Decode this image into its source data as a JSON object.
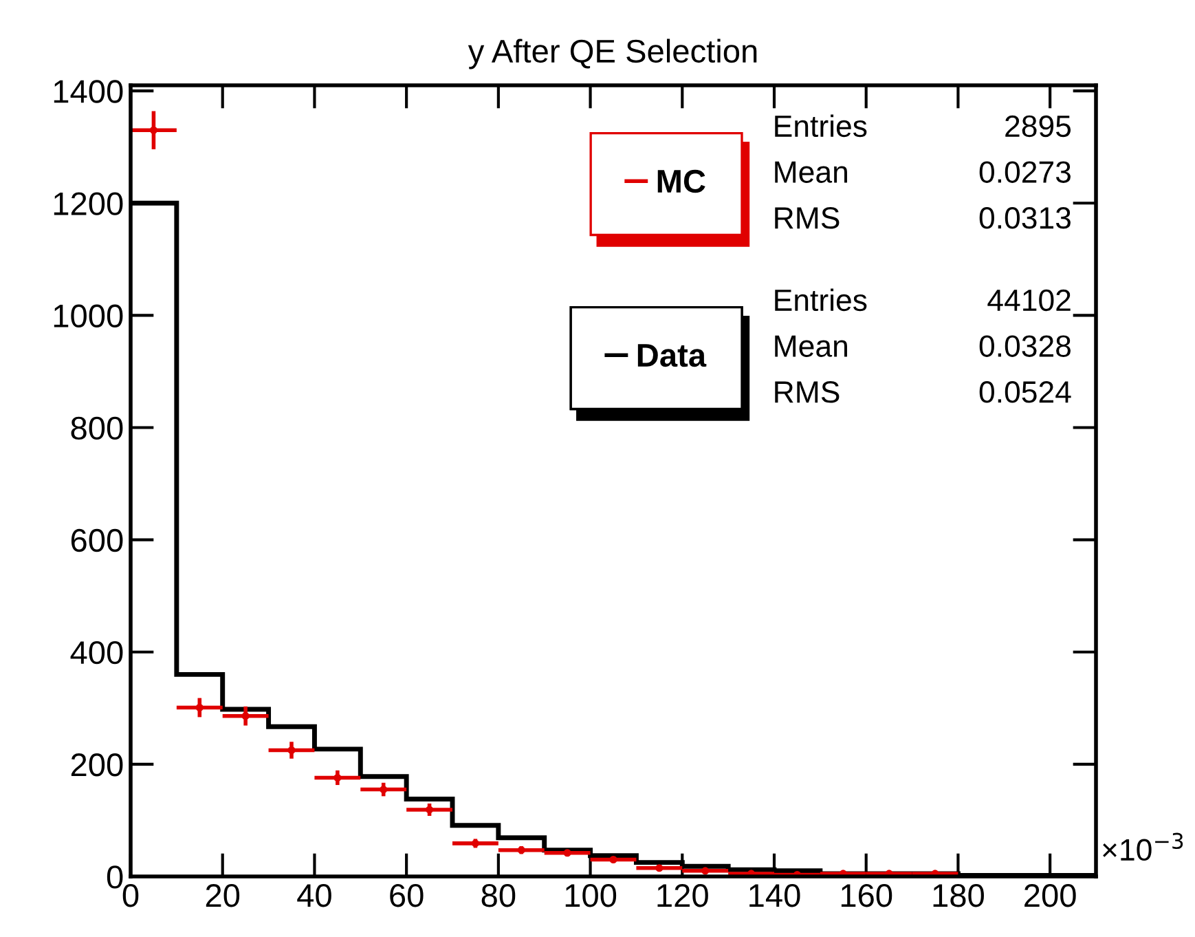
{
  "chart_data": {
    "type": "histogram",
    "title": "y After QE Selection",
    "bins": [
      0,
      10,
      20,
      30,
      40,
      50,
      60,
      70,
      80,
      90,
      100,
      110,
      120,
      130,
      140,
      150,
      160,
      170,
      180,
      190,
      200,
      210
    ],
    "series": [
      {
        "name": "Data",
        "color": "#000000",
        "values": [
          1200,
          360,
          298,
          267,
          227,
          178,
          138,
          91,
          69,
          47,
          37,
          25,
          18,
          12,
          10,
          5,
          5,
          5,
          2,
          2,
          2
        ]
      },
      {
        "name": "MC",
        "type": "scatter",
        "color": "#e00000",
        "x": [
          5,
          15,
          25,
          35,
          45,
          55,
          65,
          75,
          85,
          95,
          105,
          115,
          125,
          135,
          145,
          155,
          165,
          175
        ],
        "values": [
          1330,
          301,
          286,
          225,
          176,
          155,
          119,
          59,
          47,
          42,
          30,
          15,
          10,
          5,
          3,
          5,
          5,
          5
        ],
        "errors": [
          34,
          17,
          17,
          15,
          13,
          12,
          11,
          8,
          7,
          6,
          5,
          4,
          3,
          null,
          null,
          null,
          null,
          null
        ],
        "xerrors": [
          5,
          5,
          5,
          5,
          5,
          5,
          5,
          5,
          5,
          5,
          5,
          5,
          5,
          5,
          5,
          5,
          5,
          5
        ]
      }
    ],
    "xlim": [
      0,
      210
    ],
    "xticks": [
      0,
      20,
      40,
      60,
      80,
      100,
      120,
      140,
      160,
      180,
      200
    ],
    "ylim": [
      0,
      1410
    ],
    "yticks": [
      0,
      200,
      400,
      600,
      800,
      1000,
      1200,
      1400
    ],
    "grid": false,
    "legend": "top right",
    "annotations": [
      "Entries",
      "2895",
      "Mean",
      "0.0273",
      "RMS",
      "0.0313",
      "Entries",
      "44102",
      "Mean",
      "0.0328",
      "RMS",
      "0.0524",
      "×10$^{−3}$"
    ]
  }
}
